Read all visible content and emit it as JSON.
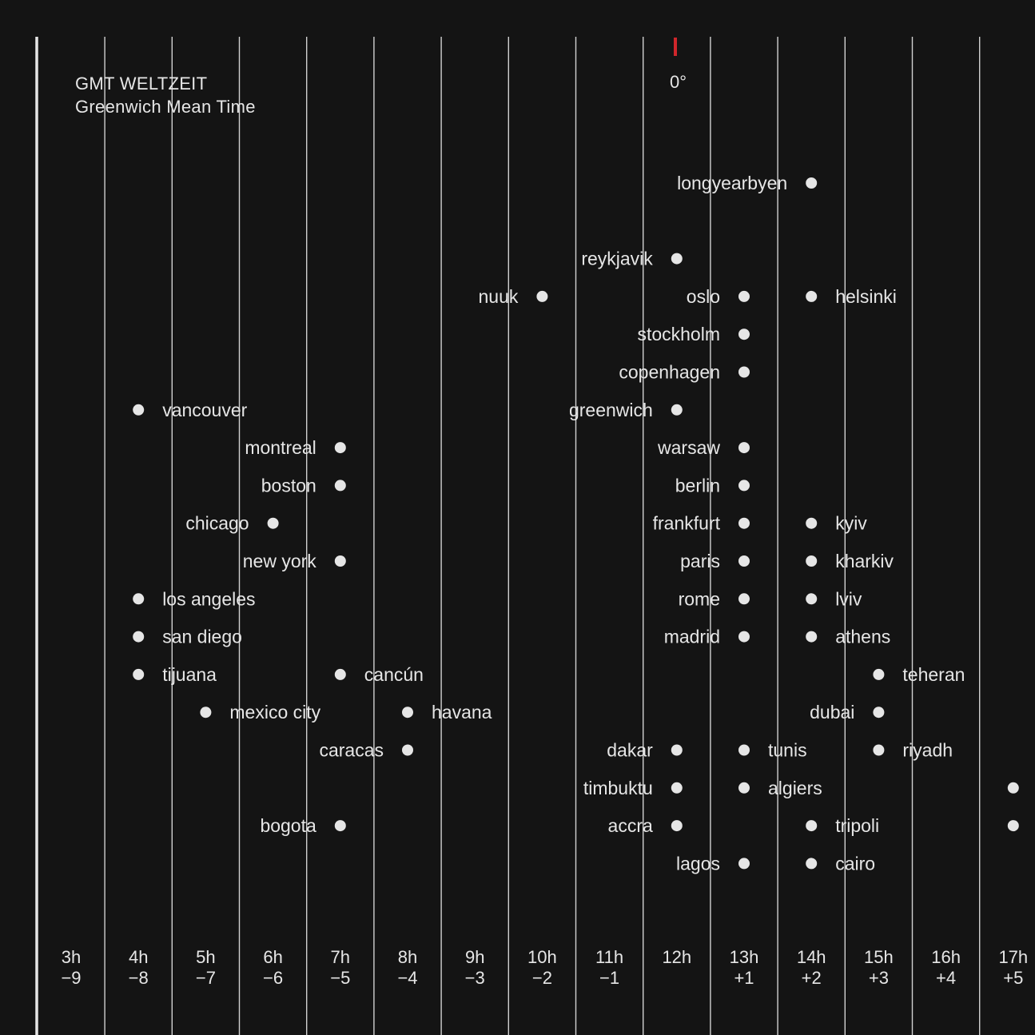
{
  "title": "GMT WELTZEIT",
  "subtitle": "Greenwich Mean Time",
  "meridian_label": "0°",
  "colors": {
    "background": "#141414",
    "line": "#e6e6e6",
    "text": "#e6e6e6",
    "meridian_marker": "#d0262b"
  },
  "chart_data": {
    "type": "scatter",
    "title": "GMT WELTZEIT",
    "subtitle": "Greenwich Mean Time",
    "x_ticks": [
      {
        "time": "3h",
        "offset": "−9",
        "value": -9
      },
      {
        "time": "4h",
        "offset": "−8",
        "value": -8
      },
      {
        "time": "5h",
        "offset": "−7",
        "value": -7
      },
      {
        "time": "6h",
        "offset": "−6",
        "value": -6
      },
      {
        "time": "7h",
        "offset": "−5",
        "value": -5
      },
      {
        "time": "8h",
        "offset": "−4",
        "value": -4
      },
      {
        "time": "9h",
        "offset": "−3",
        "value": -3
      },
      {
        "time": "10h",
        "offset": "−2",
        "value": -2
      },
      {
        "time": "11h",
        "offset": "−1",
        "value": -1
      },
      {
        "time": "12h",
        "offset": "",
        "value": 0
      },
      {
        "time": "13h",
        "offset": "+1",
        "value": 1
      },
      {
        "time": "14h",
        "offset": "+2",
        "value": 2
      },
      {
        "time": "15h",
        "offset": "+3",
        "value": 3
      },
      {
        "time": "16h",
        "offset": "+4",
        "value": 4
      },
      {
        "time": "17h",
        "offset": "+5",
        "value": 5
      }
    ],
    "grid": true,
    "points": [
      {
        "city": "longyearbyen",
        "offset": 2,
        "row": 1,
        "label_side": "left"
      },
      {
        "city": "reykjavik",
        "offset": 0,
        "row": 3,
        "label_side": "left"
      },
      {
        "city": "nuuk",
        "offset": -2,
        "row": 4,
        "label_side": "left"
      },
      {
        "city": "oslo",
        "offset": 1,
        "row": 4,
        "label_side": "left"
      },
      {
        "city": "helsinki",
        "offset": 2,
        "row": 4,
        "label_side": "right"
      },
      {
        "city": "stockholm",
        "offset": 1,
        "row": 5,
        "label_side": "left"
      },
      {
        "city": "copenhagen",
        "offset": 1,
        "row": 6,
        "label_side": "left"
      },
      {
        "city": "vancouver",
        "offset": -8,
        "row": 7,
        "label_side": "right"
      },
      {
        "city": "greenwich",
        "offset": 0,
        "row": 7,
        "label_side": "left"
      },
      {
        "city": "montreal",
        "offset": -5,
        "row": 8,
        "label_side": "left"
      },
      {
        "city": "warsaw",
        "offset": 1,
        "row": 8,
        "label_side": "left"
      },
      {
        "city": "boston",
        "offset": -5,
        "row": 9,
        "label_side": "left"
      },
      {
        "city": "berlin",
        "offset": 1,
        "row": 9,
        "label_side": "left"
      },
      {
        "city": "chicago",
        "offset": -6,
        "row": 10,
        "label_side": "left"
      },
      {
        "city": "frankfurt",
        "offset": 1,
        "row": 10,
        "label_side": "left"
      },
      {
        "city": "kyiv",
        "offset": 2,
        "row": 10,
        "label_side": "right"
      },
      {
        "city": "new york",
        "offset": -5,
        "row": 11,
        "label_side": "left"
      },
      {
        "city": "paris",
        "offset": 1,
        "row": 11,
        "label_side": "left"
      },
      {
        "city": "kharkiv",
        "offset": 2,
        "row": 11,
        "label_side": "right"
      },
      {
        "city": "los angeles",
        "offset": -8,
        "row": 12,
        "label_side": "right"
      },
      {
        "city": "rome",
        "offset": 1,
        "row": 12,
        "label_side": "left"
      },
      {
        "city": "lviv",
        "offset": 2,
        "row": 12,
        "label_side": "right"
      },
      {
        "city": "san diego",
        "offset": -8,
        "row": 13,
        "label_side": "right"
      },
      {
        "city": "madrid",
        "offset": 1,
        "row": 13,
        "label_side": "left"
      },
      {
        "city": "athens",
        "offset": 2,
        "row": 13,
        "label_side": "right"
      },
      {
        "city": "tijuana",
        "offset": -8,
        "row": 14,
        "label_side": "right"
      },
      {
        "city": "cancún",
        "offset": -5,
        "row": 14,
        "label_side": "right"
      },
      {
        "city": "teheran",
        "offset": 3,
        "row": 14,
        "label_side": "right"
      },
      {
        "city": "mexico city",
        "offset": -7,
        "row": 15,
        "label_side": "right"
      },
      {
        "city": "havana",
        "offset": -4,
        "row": 15,
        "label_side": "right"
      },
      {
        "city": "dubai",
        "offset": 3,
        "row": 15,
        "label_side": "left"
      },
      {
        "city": "caracas",
        "offset": -4,
        "row": 16,
        "label_side": "left"
      },
      {
        "city": "dakar",
        "offset": 0,
        "row": 16,
        "label_side": "left"
      },
      {
        "city": "tunis",
        "offset": 1,
        "row": 16,
        "label_side": "right"
      },
      {
        "city": "riyadh",
        "offset": 3,
        "row": 16,
        "label_side": "right"
      },
      {
        "city": "timbuktu",
        "offset": 0,
        "row": 17,
        "label_side": "left"
      },
      {
        "city": "algiers",
        "offset": 1,
        "row": 17,
        "label_side": "right"
      },
      {
        "city": "",
        "offset": 5,
        "row": 17,
        "label_side": "none"
      },
      {
        "city": "bogota",
        "offset": -5,
        "row": 18,
        "label_side": "left"
      },
      {
        "city": "accra",
        "offset": 0,
        "row": 18,
        "label_side": "left"
      },
      {
        "city": "tripoli",
        "offset": 2,
        "row": 18,
        "label_side": "right"
      },
      {
        "city": "",
        "offset": 5,
        "row": 18,
        "label_side": "none"
      },
      {
        "city": "lagos",
        "offset": 1,
        "row": 19,
        "label_side": "left"
      },
      {
        "city": "cairo",
        "offset": 2,
        "row": 19,
        "label_side": "right"
      }
    ]
  }
}
